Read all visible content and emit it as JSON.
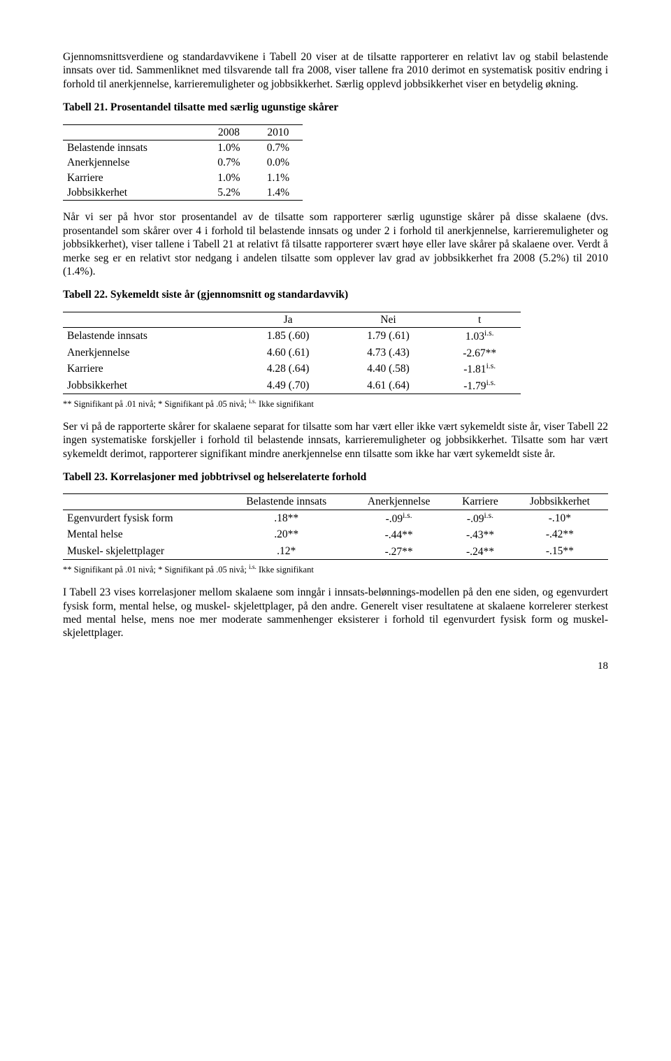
{
  "para1": "Gjennomsnittsverdiene og standardavvikene i Tabell 20 viser at de tilsatte rapporterer en relativt lav og stabil belastende innsats over tid. Sammenliknet med tilsvarende tall fra 2008, viser tallene fra 2010 derimot en systematisk positiv endring i forhold til anerkjennelse, karrieremuligheter og jobbsikkerhet. Særlig opplevd jobbsikkerhet viser en betydelig økning.",
  "t21": {
    "title": "Tabell 21. Prosentandel tilsatte med særlig ugunstige skårer",
    "cols": [
      "",
      "2008",
      "2010"
    ],
    "rows": [
      [
        "Belastende innsats",
        "1.0%",
        "0.7%"
      ],
      [
        "Anerkjennelse",
        "0.7%",
        "0.0%"
      ],
      [
        "Karriere",
        "1.0%",
        "1.1%"
      ],
      [
        "Jobbsikkerhet",
        "5.2%",
        "1.4%"
      ]
    ]
  },
  "para2": "Når vi ser på hvor stor prosentandel av de tilsatte som rapporterer særlig ugunstige skårer på disse skalaene (dvs. prosentandel som skårer over 4 i forhold til belastende innsats og under 2 i forhold til anerkjennelse, karrieremuligheter og jobbsikkerhet), viser tallene i Tabell 21 at relativt få tilsatte rapporterer svært høye eller lave skårer på skalaene over. Verdt å merke seg er en relativt stor nedgang i andelen tilsatte som opplever lav grad av jobbsikkerhet fra 2008 (5.2%) til 2010 (1.4%).",
  "t22": {
    "title": "Tabell 22. Sykemeldt siste år (gjennomsnitt og standardavvik)",
    "cols": [
      "",
      "Ja",
      "Nei",
      "t"
    ],
    "rows": [
      {
        "label": "Belastende innsats",
        "ja": "1.85 (.60)",
        "nei": "1.79 (.61)",
        "t": "1.03",
        "sup": "i.s."
      },
      {
        "label": "Anerkjennelse",
        "ja": "4.60 (.61)",
        "nei": "4.73 (.43)",
        "t": "-2.67**",
        "sup": ""
      },
      {
        "label": "Karriere",
        "ja": "4.28 (.64)",
        "nei": "4.40 (.58)",
        "t": "-1.81",
        "sup": "i.s."
      },
      {
        "label": "Jobbsikkerhet",
        "ja": "4.49 (.70)",
        "nei": "4.61 (.64)",
        "t": "-1.79",
        "sup": "i.s."
      }
    ],
    "footnote_a": "** Signifikant på .01 nivå; * Signifikant på .05 nivå; ",
    "footnote_sup": "i.s.",
    "footnote_b": " Ikke signifikant"
  },
  "para3": "Ser vi på de rapporterte skårer for skalaene separat for tilsatte som har vært eller ikke vært sykemeldt siste år, viser Tabell 22 ingen systematiske forskjeller i  forhold til belastende innsats, karrieremuligheter og jobbsikkerhet. Tilsatte som har vært sykemeldt derimot, rapporterer signifikant mindre anerkjennelse enn tilsatte som ikke har vært sykemeldt siste år.",
  "t23": {
    "title": "Tabell 23. Korrelasjoner med jobbtrivsel og helserelaterte forhold",
    "cols": [
      "",
      "Belastende innsats",
      "Anerkjennelse",
      "Karriere",
      "Jobbsikkerhet"
    ],
    "rows": [
      {
        "label": "Egenvurdert fysisk form",
        "c1": ".18**",
        "c2": "-.09",
        "s2": "i.s.",
        "c3": "-.09",
        "s3": "i.s.",
        "c4": "-.10*"
      },
      {
        "label": "Mental helse",
        "c1": ".20**",
        "c2": "-.44**",
        "s2": "",
        "c3": "-.43**",
        "s3": "",
        "c4": "-.42**"
      },
      {
        "label": "Muskel- skjelettplager",
        "c1": ".12*",
        "c2": "-.27**",
        "s2": "",
        "c3": "-.24**",
        "s3": "",
        "c4": "-.15**"
      }
    ],
    "footnote_a": "** Signifikant på .01 nivå; * Signifikant på .05 nivå; ",
    "footnote_sup": "i.s.",
    "footnote_b": " Ikke signifikant"
  },
  "para4": "I Tabell 23 vises korrelasjoner mellom skalaene som inngår i innsats-belønnings-modellen på den ene siden, og egenvurdert fysisk form, mental helse, og muskel- skjelettplager, på den andre. Generelt viser resultatene at skalaene korrelerer sterkest med mental helse, mens noe mer moderate sammenhenger eksisterer i forhold til egenvurdert fysisk form og muskel-skjelettplager.",
  "page_num": "18"
}
